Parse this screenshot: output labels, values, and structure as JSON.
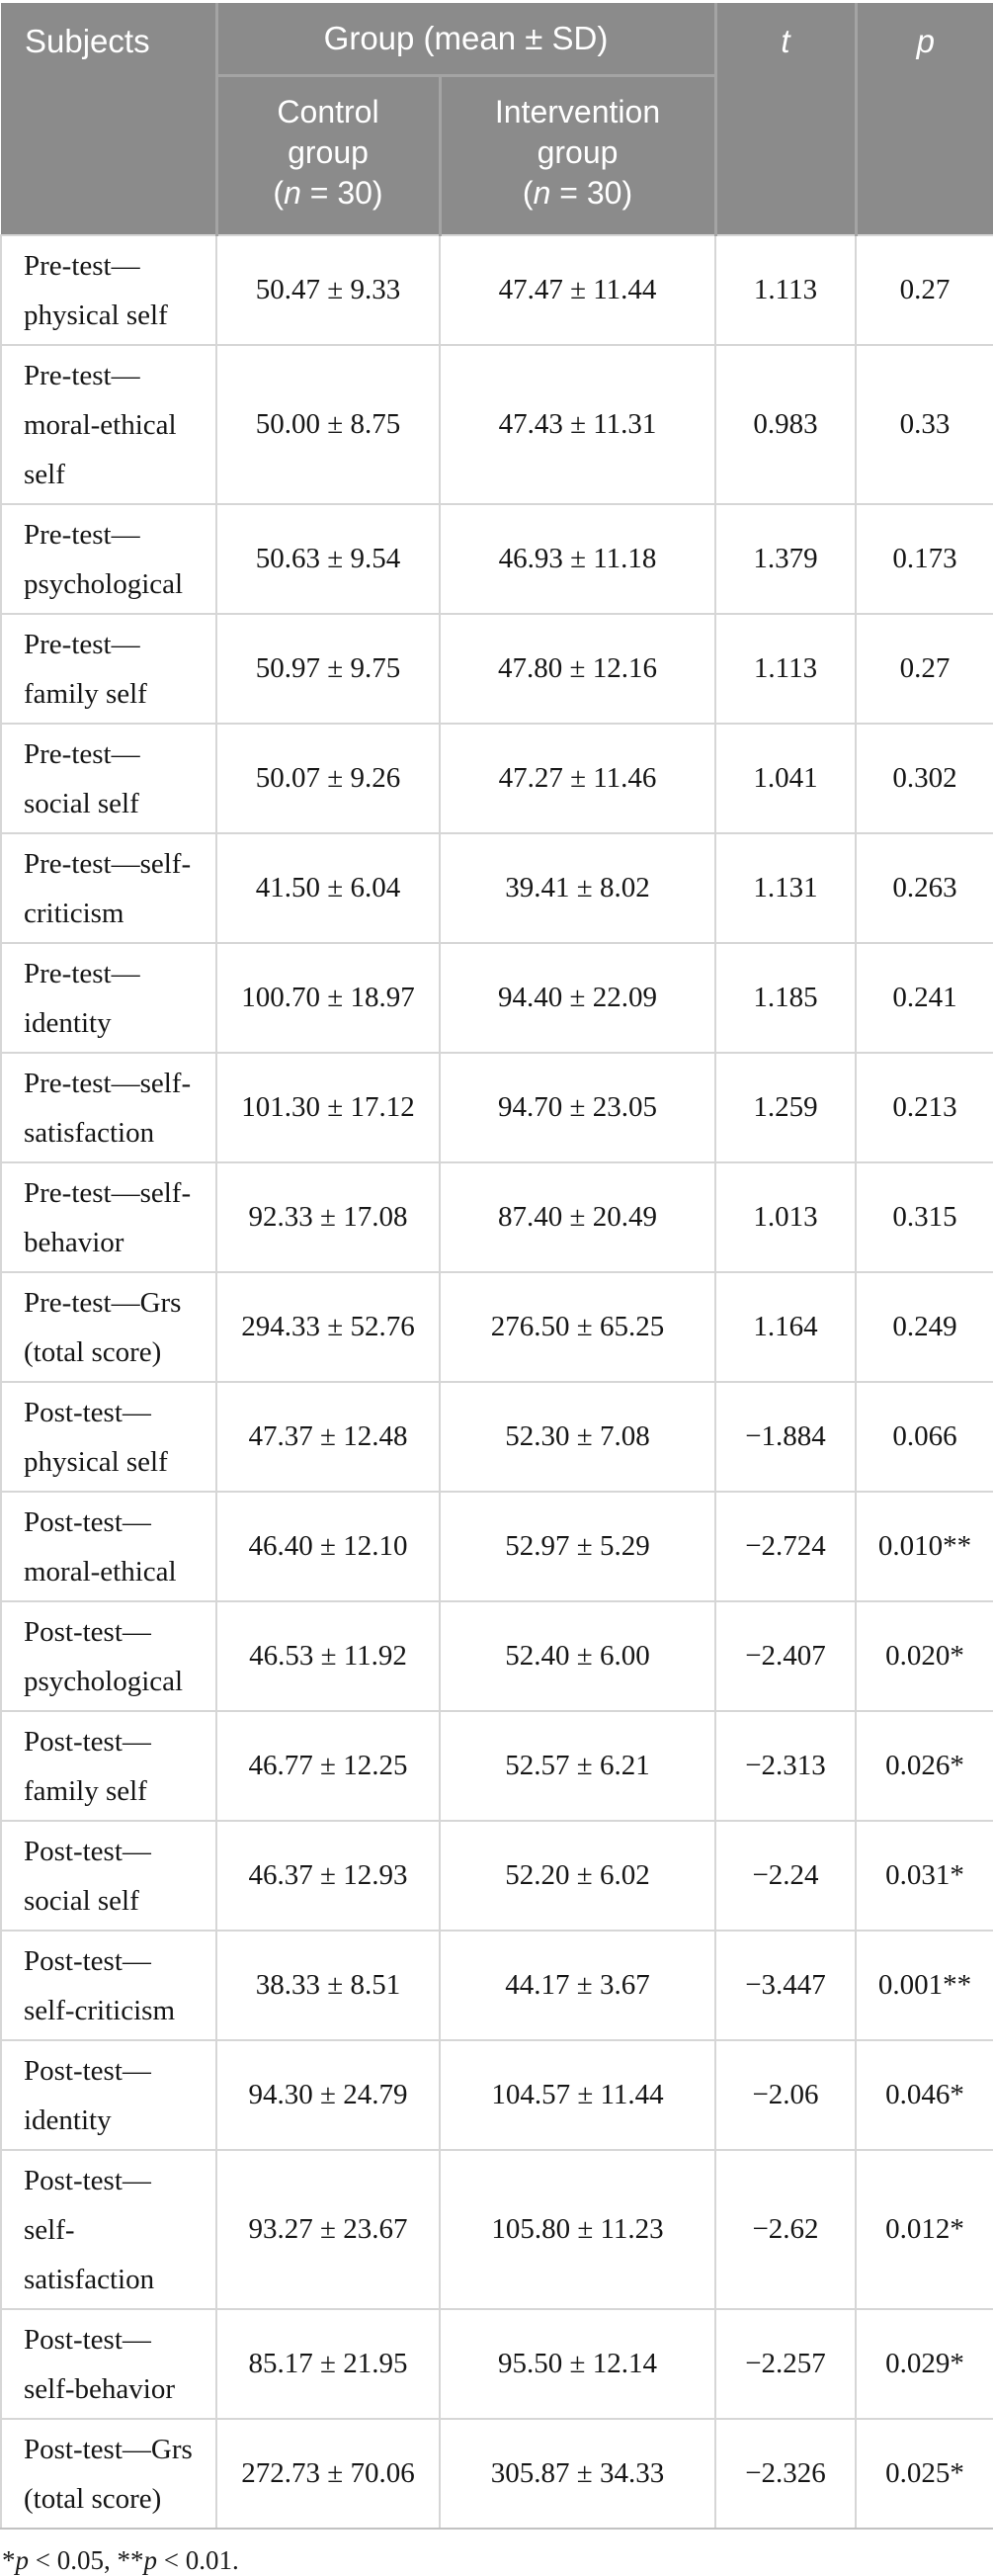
{
  "header": {
    "subjects": "Subjects",
    "group": "Group (mean ± SD)",
    "control_lines": [
      "Control",
      "group"
    ],
    "intervention_lines": [
      "Intervention",
      "group"
    ],
    "n_prefix": "(",
    "n_italic": "n",
    "n_suffix": " = 30)",
    "t": "t",
    "p": "p"
  },
  "rows": [
    {
      "subject": "Pre-test—physical self",
      "subject_lines": [
        "Pre-test—",
        "physical self"
      ],
      "control": "50.47 ± 9.33",
      "intervention": "47.47 ± 11.44",
      "t": "1.113",
      "p": "0.27"
    },
    {
      "subject": "Pre-test—moral-ethical self",
      "subject_lines": [
        "Pre-test—",
        "moral-ethical",
        "self"
      ],
      "control": "50.00 ± 8.75",
      "intervention": "47.43 ± 11.31",
      "t": "0.983",
      "p": "0.33"
    },
    {
      "subject": "Pre-test—psychological",
      "subject_lines": [
        "Pre-test—",
        "psychological"
      ],
      "control": "50.63 ± 9.54",
      "intervention": "46.93 ± 11.18",
      "t": "1.379",
      "p": "0.173"
    },
    {
      "subject": "Pre-test—family self",
      "subject_lines": [
        "Pre-test—",
        "family self"
      ],
      "control": "50.97 ± 9.75",
      "intervention": "47.80 ± 12.16",
      "t": "1.113",
      "p": "0.27"
    },
    {
      "subject": "Pre-test—social self",
      "subject_lines": [
        "Pre-test—",
        "social self"
      ],
      "control": "50.07 ± 9.26",
      "intervention": "47.27 ± 11.46",
      "t": "1.041",
      "p": "0.302"
    },
    {
      "subject": "Pre-test—self-criticism",
      "subject_lines": [
        "Pre-test—self-",
        "criticism"
      ],
      "control": "41.50 ± 6.04",
      "intervention": "39.41 ± 8.02",
      "t": "1.131",
      "p": "0.263"
    },
    {
      "subject": "Pre-test—identity",
      "subject_lines": [
        "Pre-test—",
        "identity"
      ],
      "control": "100.70 ± 18.97",
      "intervention": "94.40 ± 22.09",
      "t": "1.185",
      "p": "0.241"
    },
    {
      "subject": "Pre-test—self-satisfaction",
      "subject_lines": [
        "Pre-test—self-",
        "satisfaction"
      ],
      "control": "101.30 ± 17.12",
      "intervention": "94.70 ± 23.05",
      "t": "1.259",
      "p": "0.213"
    },
    {
      "subject": "Pre-test—self-behavior",
      "subject_lines": [
        "Pre-test—self-",
        "behavior"
      ],
      "control": "92.33 ± 17.08",
      "intervention": "87.40 ± 20.49",
      "t": "1.013",
      "p": "0.315"
    },
    {
      "subject": "Pre-test—Grs (total score)",
      "subject_lines": [
        "Pre-test—Grs",
        "(total score)"
      ],
      "control": "294.33 ± 52.76",
      "intervention": "276.50 ± 65.25",
      "t": "1.164",
      "p": "0.249"
    },
    {
      "subject": "Post-test—physical self",
      "subject_lines": [
        "Post-test—",
        "physical self"
      ],
      "control": "47.37 ± 12.48",
      "intervention": "52.30 ± 7.08",
      "t": "−1.884",
      "p": "0.066"
    },
    {
      "subject": "Post-test—moral-ethical",
      "subject_lines": [
        "Post-test—",
        "moral-ethical"
      ],
      "control": "46.40 ± 12.10",
      "intervention": "52.97 ± 5.29",
      "t": "−2.724",
      "p": "0.010**"
    },
    {
      "subject": "Post-test—psychological",
      "subject_lines": [
        "Post-test—",
        "psychological"
      ],
      "control": "46.53 ± 11.92",
      "intervention": "52.40 ± 6.00",
      "t": "−2.407",
      "p": "0.020*"
    },
    {
      "subject": "Post-test—family self",
      "subject_lines": [
        "Post-test—",
        "family self"
      ],
      "control": "46.77 ± 12.25",
      "intervention": "52.57 ± 6.21",
      "t": "−2.313",
      "p": "0.026*"
    },
    {
      "subject": "Post-test—social self",
      "subject_lines": [
        "Post-test—",
        "social self"
      ],
      "control": "46.37 ± 12.93",
      "intervention": "52.20 ± 6.02",
      "t": "−2.24",
      "p": "0.031*"
    },
    {
      "subject": "Post-test—self-criticism",
      "subject_lines": [
        "Post-test—",
        "self-criticism"
      ],
      "control": "38.33 ± 8.51",
      "intervention": "44.17 ± 3.67",
      "t": "−3.447",
      "p": "0.001**"
    },
    {
      "subject": "Post-test—identity",
      "subject_lines": [
        "Post-test—",
        "identity"
      ],
      "control": "94.30 ± 24.79",
      "intervention": "104.57 ± 11.44",
      "t": "−2.06",
      "p": "0.046*"
    },
    {
      "subject": "Post-test—self-satisfaction",
      "subject_lines": [
        "Post-test—",
        "self-",
        "satisfaction"
      ],
      "control": "93.27 ± 23.67",
      "intervention": "105.80 ± 11.23",
      "t": "−2.62",
      "p": "0.012*"
    },
    {
      "subject": "Post-test—self-behavior",
      "subject_lines": [
        "Post-test—",
        "self-behavior"
      ],
      "control": "85.17 ± 21.95",
      "intervention": "95.50 ± 12.14",
      "t": "−2.257",
      "p": "0.029*"
    },
    {
      "subject": "Post-test—Grs (total score)",
      "subject_lines": [
        "Post-test—Grs",
        "(total score)"
      ],
      "control": "272.73 ± 70.06",
      "intervention": "305.87 ± 34.33",
      "t": "−2.326",
      "p": "0.025*"
    }
  ],
  "footnote": {
    "star1": "*",
    "p1": "p",
    "mid": " < 0.05, **",
    "p2": "p",
    "end": " < 0.01."
  },
  "colors": {
    "header_bg": "#8b8b8b",
    "header_text": "#ffffff",
    "header_divider": "#a4a4a4",
    "body_border": "#d6d6d6",
    "body_text": "#161616"
  }
}
